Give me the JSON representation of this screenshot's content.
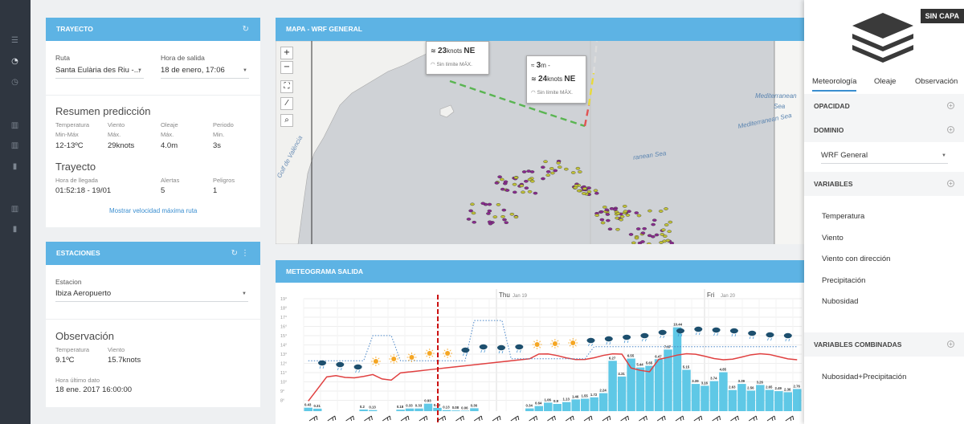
{
  "rail": {
    "icons": [
      "menu-icon",
      "dashboard-icon",
      "clock-icon",
      "map-icon",
      "map-icon",
      "bar-chart-icon",
      "map-icon",
      "bar-chart-icon"
    ]
  },
  "trayecto": {
    "title": "TRAYECTO",
    "ruta_label": "Ruta",
    "ruta_value": "Santa Eulària des Riu -...",
    "hora_label": "Hora de salida",
    "hora_value": "18 de enero, 17:06",
    "resumen_title": "Resumen predicción",
    "resumen": [
      {
        "head": "Temperatura",
        "sub": "Min-Máx",
        "value": "12-13ºC"
      },
      {
        "head": "Viento",
        "sub": "Máx.",
        "value": "29knots"
      },
      {
        "head": "Oleaje",
        "sub": "Máx.",
        "value": "4.0m"
      },
      {
        "head": "Periodo",
        "sub": "Min.",
        "value": "3s"
      }
    ],
    "trayecto_title": "Trayecto",
    "trayecto_items": [
      {
        "head": "Hora de llegada",
        "value": "01:52:18 - 19/01"
      },
      {
        "head": "Alertas",
        "value": "5"
      },
      {
        "head": "Peligros",
        "value": "1"
      }
    ],
    "link": "Mostrar velocidad máxima ruta"
  },
  "estaciones": {
    "title": "ESTACIONES",
    "estacion_label": "Estacion",
    "estacion_value": "Ibiza Aeropuerto",
    "obs_title": "Observación",
    "obs": [
      {
        "head": "Temperatura",
        "value": "9.1ºC"
      },
      {
        "head": "Viento",
        "value": "15.7knots"
      }
    ],
    "ultimo_label": "Hora último dato",
    "ultimo_value": "18 ene. 2017 16:00:00"
  },
  "mapa": {
    "title": "MAPA - WRF GENERAL",
    "tools": [
      "+",
      "−",
      "⛶",
      "⁄",
      "⌕"
    ],
    "popup1": {
      "wind": "23",
      "unit": "knots",
      "dir": "NE",
      "vis": "Sin límite",
      "vis_unit": "MÁX."
    },
    "popup2": {
      "wave": "3",
      "wave_unit": "m",
      "wave_dir": "-",
      "wind": "24",
      "unit": "knots",
      "dir": "NE",
      "vis": "Sin límite",
      "vis_unit": "MÁX."
    },
    "labels": {
      "gulf": "Golf de València",
      "med1": "Mediterranean",
      "med1b": "Sea",
      "med2": "Mediterranean Sea",
      "med3": "ranean Sea"
    }
  },
  "meteo": {
    "title": "METEOGRAMA SALIDA",
    "days": [
      "Thu",
      "Fri"
    ],
    "dates": [
      "Jan 19",
      "Jan 20"
    ],
    "y_ticks": [
      "19°",
      "18°",
      "17°",
      "16°",
      "15°",
      "14°",
      "13°",
      "12°",
      "11°",
      "10°",
      "9°",
      "8°"
    ],
    "precip": [
      0.43,
      0.31,
      0,
      0,
      0,
      0,
      0.2,
      0.13,
      0,
      0,
      0.18,
      0.33,
      0.33,
      0.93,
      0.42,
      0.13,
      0.08,
      0.06,
      0.36,
      0,
      0,
      0,
      0,
      0,
      0.34,
      0.64,
      1.06,
      0.9,
      1.13,
      1.46,
      1.55,
      1.72,
      2.24,
      6.27,
      4.31,
      6.55,
      5.44,
      5.65,
      6.47,
      7.67,
      10.44,
      5.15,
      3.39,
      3.16,
      3.74,
      4.85,
      2.63,
      3.39,
      2.56,
      3.26,
      2.65,
      2.49,
      2.36,
      2.76
    ],
    "precip_labels_shown": [
      "0.43",
      "0.31",
      "0.2",
      "0.13",
      "0.18",
      "0.33",
      "0.33",
      "0.93",
      "0.42",
      "0.13",
      "0.08",
      "0.06",
      "0.36",
      "0.34",
      "0.64",
      "1.06",
      "0.9",
      "1.13",
      "1.46",
      "1.55",
      "1.72",
      "2.24",
      "6.27",
      "4.31",
      "6.55",
      "5.44",
      "5.65",
      "6.47",
      "7.67",
      "10.44",
      "5.15",
      "3.39",
      "3.16",
      "3.74",
      "4.85",
      "2.63",
      "3.39",
      "2.56",
      "3.26",
      "2.65",
      "2.49",
      "2.36",
      "2.76"
    ]
  },
  "panel": {
    "badge": "SIN CAPA",
    "tabs": [
      "Meteorología",
      "Oleaje",
      "Observación"
    ],
    "opacidad": "OPACIDAD",
    "dominio": "DOMINIO",
    "dominio_value": "WRF General",
    "variables": "VARIABLES",
    "vars": [
      "Temperatura",
      "Viento",
      "Viento con dirección",
      "Precipitación",
      "Nubosidad"
    ],
    "combinadas": "VARIABLES COMBINADAS",
    "comb_vars": [
      "Nubosidad+Precipitación"
    ]
  }
}
